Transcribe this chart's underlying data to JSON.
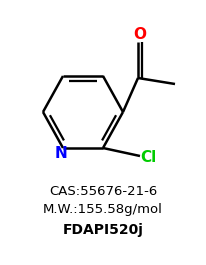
{
  "cas": "CAS:55676-21-6",
  "mw": "M.W.:155.58g/mol",
  "compound_id": "FDAPI520j",
  "bg_color": "#ffffff",
  "bond_color": "#000000",
  "nitrogen_color": "#0000ff",
  "oxygen_color": "#ff0000",
  "chlorine_color": "#00cc00",
  "text_color": "#000000"
}
